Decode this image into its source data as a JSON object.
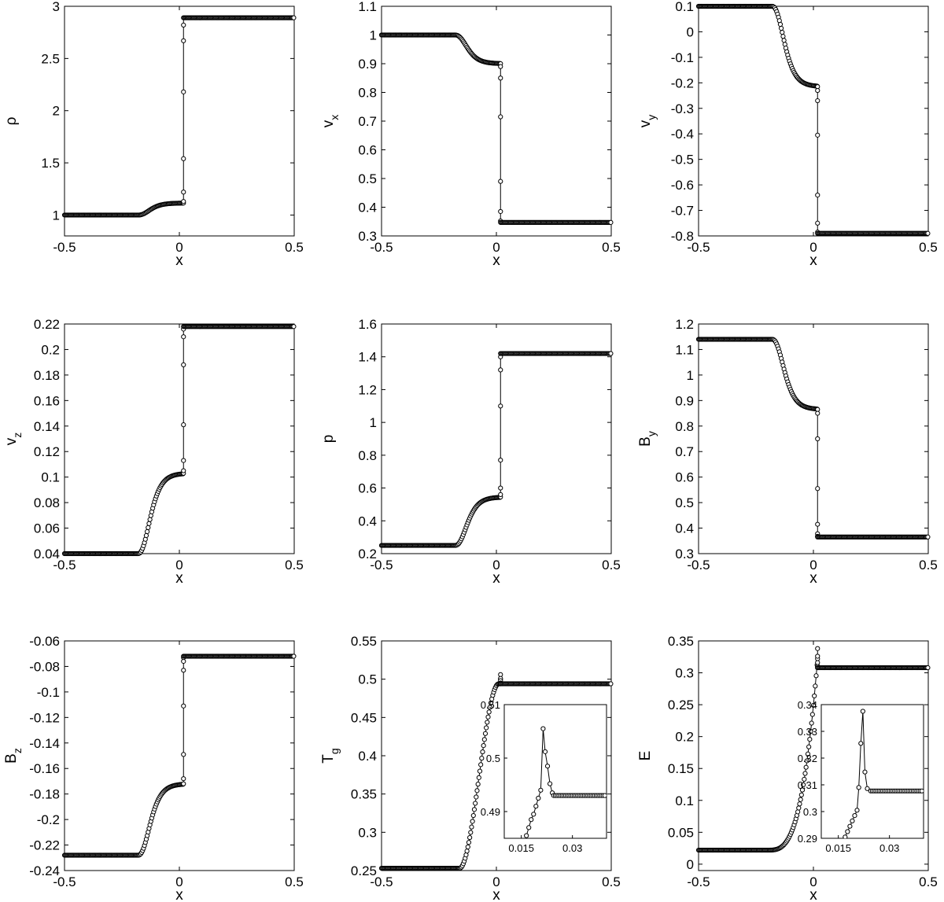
{
  "chart_data": [
    {
      "id": "rho",
      "type": "line",
      "ylabel": "ρ",
      "ylabel_sub": "",
      "xlabel": "x",
      "xlim": [
        -0.5,
        0.5
      ],
      "ylim": [
        0.8,
        3.0
      ],
      "xticks": [
        -0.5,
        0,
        0.5
      ],
      "xtick_labels": [
        "-0.5",
        "0",
        "0.5"
      ],
      "yticks": [
        1,
        1.5,
        2,
        2.5,
        3
      ],
      "ytick_labels": [
        "1",
        "1.5",
        "2",
        "2.5",
        "3"
      ],
      "series": [
        {
          "shape": "tanh",
          "L": 1.0,
          "S": 1.115,
          "R": 2.89,
          "jump": [
            1.115,
            1.13,
            1.22,
            1.54,
            2.18,
            2.67,
            2.82,
            2.89
          ]
        }
      ]
    },
    {
      "id": "vx",
      "type": "line",
      "ylabel": "v",
      "ylabel_sub": "x",
      "xlabel": "x",
      "xlim": [
        -0.5,
        0.5
      ],
      "ylim": [
        0.3,
        1.1
      ],
      "xticks": [
        -0.5,
        0,
        0.5
      ],
      "xtick_labels": [
        "-0.5",
        "0",
        "0.5"
      ],
      "yticks": [
        0.3,
        0.4,
        0.5,
        0.6,
        0.7,
        0.8,
        0.9,
        1,
        1.1
      ],
      "ytick_labels": [
        "0.3",
        "0.4",
        "0.5",
        "0.6",
        "0.7",
        "0.8",
        "0.9",
        "1",
        "1.1"
      ],
      "series": [
        {
          "shape": "tanh",
          "L": 1.0,
          "S": 0.9,
          "R": 0.347,
          "jump": [
            0.9,
            0.89,
            0.85,
            0.715,
            0.49,
            0.385,
            0.352,
            0.347
          ]
        }
      ]
    },
    {
      "id": "vy",
      "type": "line",
      "ylabel": "v",
      "ylabel_sub": "y",
      "xlabel": "x",
      "xlim": [
        -0.5,
        0.5
      ],
      "ylim": [
        -0.8,
        0.1
      ],
      "xticks": [
        -0.5,
        0,
        0.5
      ],
      "xtick_labels": [
        "-0.5",
        "0",
        "0.5"
      ],
      "yticks": [
        -0.8,
        -0.7,
        -0.6,
        -0.5,
        -0.4,
        -0.3,
        -0.2,
        -0.1,
        0,
        0.1
      ],
      "ytick_labels": [
        "-0.8",
        "-0.7",
        "-0.6",
        "-0.5",
        "-0.4",
        "-0.3",
        "-0.2",
        "-0.1",
        "0",
        "0.1"
      ],
      "series": [
        {
          "shape": "tanh",
          "L": 0.1,
          "S": -0.215,
          "R": -0.79,
          "jump": [
            -0.215,
            -0.23,
            -0.27,
            -0.405,
            -0.64,
            -0.75,
            -0.785,
            -0.79
          ]
        }
      ]
    },
    {
      "id": "vz",
      "type": "line",
      "ylabel": "v",
      "ylabel_sub": "z",
      "xlabel": "x",
      "xlim": [
        -0.5,
        0.5
      ],
      "ylim": [
        0.04,
        0.22
      ],
      "xticks": [
        -0.5,
        0,
        0.5
      ],
      "xtick_labels": [
        "-0.5",
        "0",
        "0.5"
      ],
      "yticks": [
        0.04,
        0.06,
        0.08,
        0.1,
        0.12,
        0.14,
        0.16,
        0.18,
        0.2,
        0.22
      ],
      "ytick_labels": [
        "0.04",
        "0.06",
        "0.08",
        "0.1",
        "0.12",
        "0.14",
        "0.16",
        "0.18",
        "0.2",
        "0.22"
      ],
      "series": [
        {
          "shape": "tanh",
          "L": 0.04,
          "S": 0.103,
          "R": 0.218,
          "jump": [
            0.103,
            0.105,
            0.113,
            0.141,
            0.188,
            0.21,
            0.216,
            0.218
          ]
        }
      ]
    },
    {
      "id": "p",
      "type": "line",
      "ylabel": "p",
      "ylabel_sub": "",
      "xlabel": "x",
      "xlim": [
        -0.5,
        0.5
      ],
      "ylim": [
        0.2,
        1.6
      ],
      "xticks": [
        -0.5,
        0,
        0.5
      ],
      "xtick_labels": [
        "-0.5",
        "0",
        "0.5"
      ],
      "yticks": [
        0.2,
        0.4,
        0.6,
        0.8,
        1,
        1.2,
        1.4,
        1.6
      ],
      "ytick_labels": [
        "0.2",
        "0.4",
        "0.6",
        "0.8",
        "1",
        "1.2",
        "1.4",
        "1.6"
      ],
      "series": [
        {
          "shape": "tanh",
          "L": 0.25,
          "S": 0.545,
          "R": 1.42,
          "jump": [
            0.545,
            0.56,
            0.6,
            0.77,
            1.1,
            1.32,
            1.4,
            1.42
          ]
        }
      ]
    },
    {
      "id": "By",
      "type": "line",
      "ylabel": "B",
      "ylabel_sub": "y",
      "xlabel": "x",
      "xlim": [
        -0.5,
        0.5
      ],
      "ylim": [
        0.3,
        1.2
      ],
      "xticks": [
        -0.5,
        0,
        0.5
      ],
      "xtick_labels": [
        "-0.5",
        "0",
        "0.5"
      ],
      "yticks": [
        0.3,
        0.4,
        0.5,
        0.6,
        0.7,
        0.8,
        0.9,
        1,
        1.1,
        1.2
      ],
      "ytick_labels": [
        "0.3",
        "0.4",
        "0.5",
        "0.6",
        "0.7",
        "0.8",
        "0.9",
        "1",
        "1.1",
        "1.2"
      ],
      "series": [
        {
          "shape": "tanh",
          "L": 1.14,
          "S": 0.865,
          "R": 0.365,
          "jump": [
            0.865,
            0.85,
            0.75,
            0.555,
            0.415,
            0.378,
            0.368,
            0.365
          ]
        }
      ]
    },
    {
      "id": "Bz",
      "type": "line",
      "ylabel": "B",
      "ylabel_sub": "z",
      "xlabel": "x",
      "xlim": [
        -0.5,
        0.5
      ],
      "ylim": [
        -0.24,
        -0.06
      ],
      "xticks": [
        -0.5,
        0,
        0.5
      ],
      "xtick_labels": [
        "-0.5",
        "0",
        "0.5"
      ],
      "yticks": [
        -0.24,
        -0.22,
        -0.2,
        -0.18,
        -0.16,
        -0.14,
        -0.12,
        -0.1,
        -0.08,
        -0.06
      ],
      "ytick_labels": [
        "-0.24",
        "-0.22",
        "-0.2",
        "-0.18",
        "-0.16",
        "-0.14",
        "-0.12",
        "-0.1",
        "-0.08",
        "-0.06"
      ],
      "series": [
        {
          "shape": "tanh",
          "L": -0.228,
          "S": -0.172,
          "R": -0.072,
          "jump": [
            -0.172,
            -0.168,
            -0.149,
            -0.111,
            -0.083,
            -0.076,
            -0.073,
            -0.072
          ]
        }
      ]
    },
    {
      "id": "Tg",
      "type": "line",
      "ylabel": "T",
      "ylabel_sub": "g",
      "xlabel": "x",
      "xlim": [
        -0.5,
        0.5
      ],
      "ylim": [
        0.25,
        0.55
      ],
      "xticks": [
        -0.5,
        0,
        0.5
      ],
      "xtick_labels": [
        "-0.5",
        "0",
        "0.5"
      ],
      "yticks": [
        0.25,
        0.3,
        0.35,
        0.4,
        0.45,
        0.5,
        0.55
      ],
      "ytick_labels": [
        "0.25",
        "0.3",
        "0.35",
        "0.4",
        "0.45",
        "0.5",
        "0.55"
      ],
      "series": [
        {
          "shape": "ramp",
          "L": 0.253,
          "S": 0.494,
          "R": 0.494,
          "jump": [
            0.494,
            0.5,
            0.506,
            0.501,
            0.498,
            0.495,
            0.494
          ]
        }
      ],
      "inset": {
        "xlim": [
          0.01,
          0.04
        ],
        "ylim": [
          0.485,
          0.51
        ],
        "xticks": [
          0.015,
          0.03
        ],
        "xtick_labels": [
          "0.015",
          "0.03"
        ],
        "yticks": [
          0.49,
          0.5,
          0.51
        ],
        "ytick_labels": [
          "0.49",
          "0.5",
          "0.51"
        ],
        "x": [
          0.0158,
          0.0165,
          0.0172,
          0.0179,
          0.0186,
          0.0193,
          0.02,
          0.0207,
          0.0214,
          0.022,
          0.0227,
          0.0234,
          0.0241,
          0.025,
          0.03,
          0.035,
          0.04
        ],
        "y": [
          0.484,
          0.4855,
          0.487,
          0.4885,
          0.4895,
          0.491,
          0.4925,
          0.494,
          0.5055,
          0.5012,
          0.4985,
          0.4952,
          0.4935,
          0.493,
          0.493,
          0.493,
          0.493
        ]
      }
    },
    {
      "id": "E",
      "type": "line",
      "ylabel": "E",
      "ylabel_sub": "",
      "xlabel": "x",
      "xlim": [
        -0.5,
        0.5
      ],
      "ylim": [
        -0.01,
        0.35
      ],
      "xticks": [
        -0.5,
        0,
        0.5
      ],
      "xtick_labels": [
        "-0.5",
        "0",
        "0.5"
      ],
      "yticks": [
        0,
        0.05,
        0.1,
        0.15,
        0.2,
        0.25,
        0.3,
        0.35
      ],
      "ytick_labels": [
        "0",
        "0.05",
        "0.1",
        "0.15",
        "0.2",
        "0.25",
        "0.3",
        "0.35"
      ],
      "series": [
        {
          "shape": "pow",
          "L": 0.022,
          "S": 0.308,
          "R": 0.308,
          "jump": [
            0.308,
            0.322,
            0.338,
            0.326,
            0.316,
            0.31,
            0.308
          ]
        }
      ],
      "inset": {
        "xlim": [
          0.01,
          0.04
        ],
        "ylim": [
          0.29,
          0.34
        ],
        "xticks": [
          0.015,
          0.03
        ],
        "xtick_labels": [
          "0.015",
          "0.03"
        ],
        "yticks": [
          0.29,
          0.3,
          0.31,
          0.32,
          0.33,
          0.34
        ],
        "ytick_labels": [
          "0.29",
          "0.3",
          "0.31",
          "0.32",
          "0.33",
          "0.34"
        ],
        "x": [
          0.017,
          0.0177,
          0.0184,
          0.0191,
          0.0198,
          0.0205,
          0.021,
          0.0216,
          0.0222,
          0.0228,
          0.0235,
          0.025,
          0.03,
          0.035,
          0.04
        ],
        "y": [
          0.2905,
          0.2925,
          0.2945,
          0.2965,
          0.2985,
          0.3005,
          0.309,
          0.3255,
          0.3375,
          0.3148,
          0.3086,
          0.3078,
          0.3077,
          0.3077,
          0.3077
        ]
      }
    }
  ]
}
